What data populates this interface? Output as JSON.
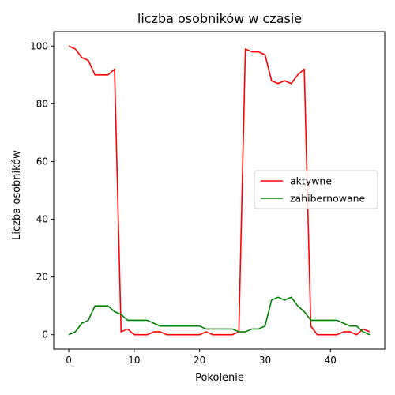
{
  "chart_data": {
    "type": "line",
    "title": "liczba osobników w czasie",
    "xlabel": "Pokolenie",
    "ylabel": "Liczba osobników",
    "xlim": [
      -2.3,
      48.3
    ],
    "ylim": [
      -5,
      105
    ],
    "xticks": [
      0,
      10,
      20,
      30,
      40
    ],
    "yticks": [
      0,
      20,
      40,
      60,
      80,
      100
    ],
    "grid": false,
    "legend_position": "center-right",
    "x": [
      0,
      1,
      2,
      3,
      4,
      5,
      6,
      7,
      8,
      9,
      10,
      11,
      12,
      13,
      14,
      15,
      16,
      17,
      18,
      19,
      20,
      21,
      22,
      23,
      24,
      25,
      26,
      27,
      28,
      29,
      30,
      31,
      32,
      33,
      34,
      35,
      36,
      37,
      38,
      39,
      40,
      41,
      42,
      43,
      44,
      45,
      46
    ],
    "series": [
      {
        "name": "aktywne",
        "color": "#ff0000",
        "values": [
          100,
          99,
          96,
          95,
          90,
          90,
          90,
          92,
          1,
          2,
          0,
          0,
          0,
          1,
          1,
          0,
          0,
          0,
          0,
          0,
          0,
          1,
          0,
          0,
          0,
          0,
          1,
          99,
          98,
          98,
          97,
          88,
          87,
          88,
          87,
          90,
          92,
          3,
          0,
          0,
          0,
          0,
          1,
          1,
          0,
          2,
          1
        ]
      },
      {
        "name": "zahibernowane",
        "color": "#008000",
        "values": [
          0,
          1,
          4,
          5,
          10,
          10,
          10,
          8,
          7,
          5,
          5,
          5,
          5,
          4,
          3,
          3,
          3,
          3,
          3,
          3,
          3,
          2,
          2,
          2,
          2,
          2,
          1,
          1,
          2,
          2,
          3,
          12,
          13,
          12,
          13,
          10,
          8,
          5,
          5,
          5,
          5,
          5,
          4,
          3,
          3,
          1,
          0
        ]
      }
    ]
  }
}
